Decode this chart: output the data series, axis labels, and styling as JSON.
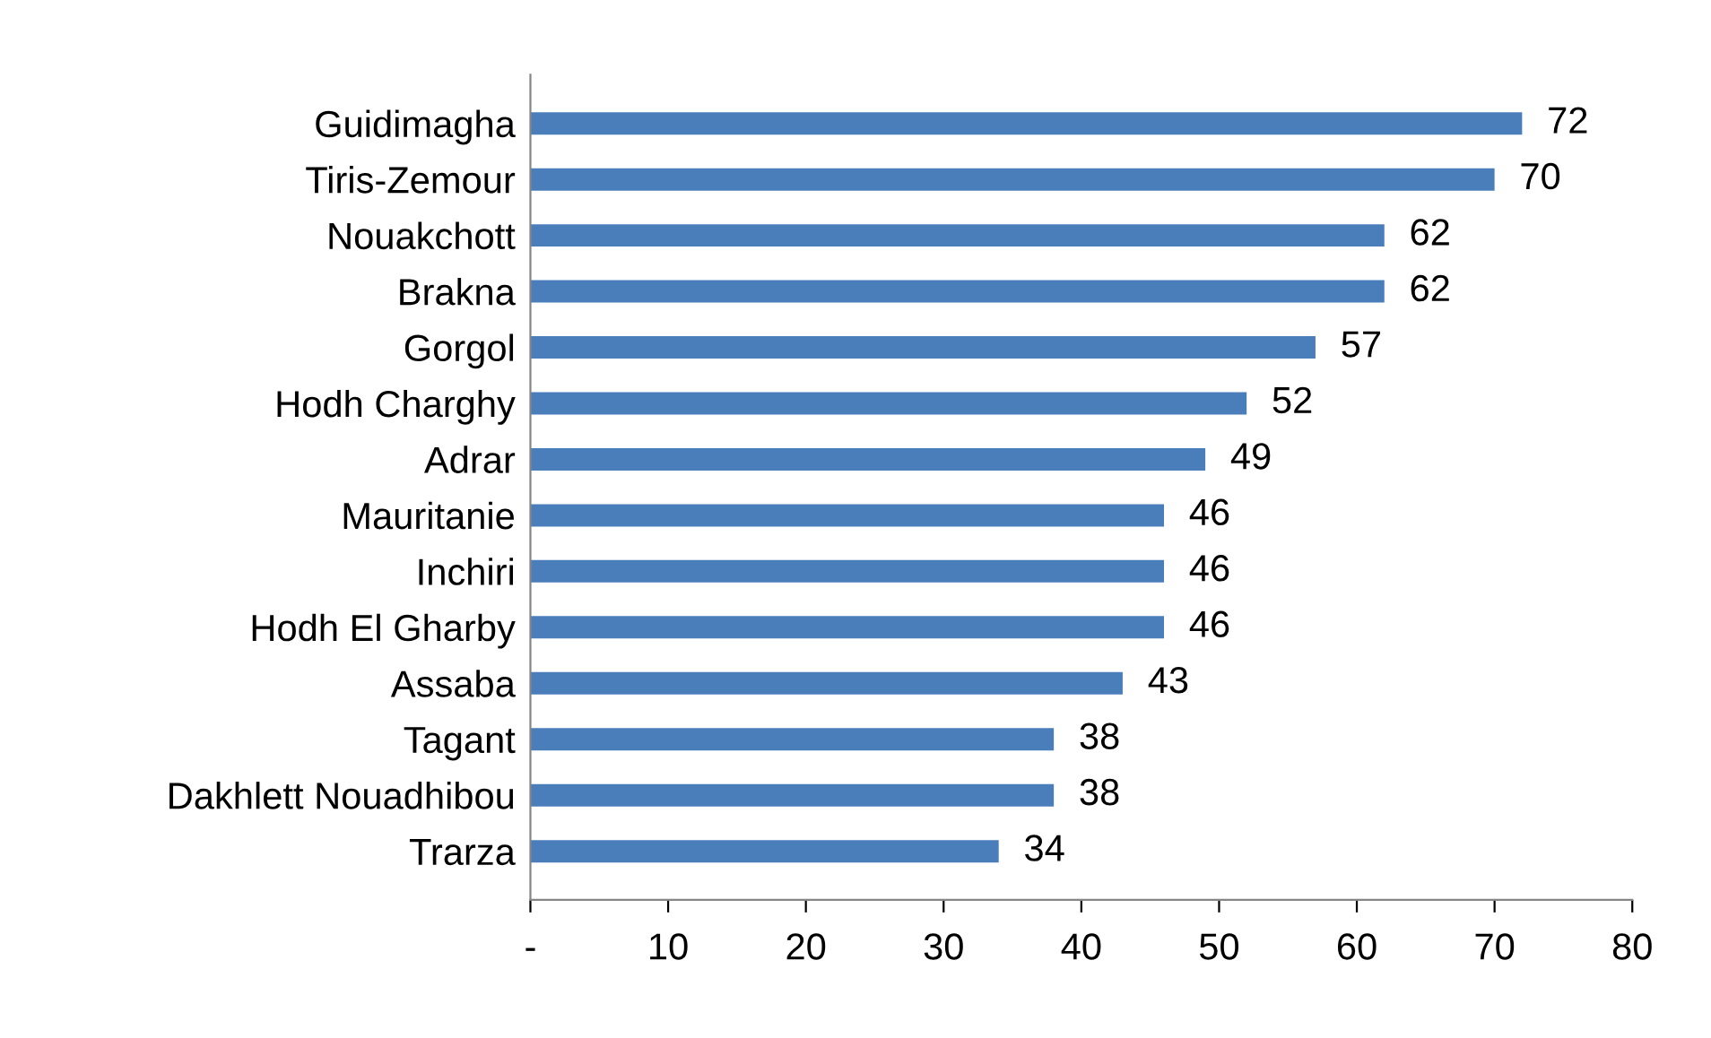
{
  "chart_data": {
    "type": "bar",
    "orientation": "horizontal",
    "categories": [
      "Guidimagha",
      "Tiris-Zemour",
      "Nouakchott",
      "Brakna",
      "Gorgol",
      "Hodh Charghy",
      "Adrar",
      "Mauritanie",
      "Inchiri",
      "Hodh El Gharby",
      "Assaba",
      "Tagant",
      "Dakhlett Nouadhibou",
      "Trarza"
    ],
    "values": [
      72,
      70,
      62,
      62,
      57,
      52,
      49,
      46,
      46,
      46,
      43,
      38,
      38,
      34
    ],
    "color": "#4a7ebb",
    "xlim": [
      0,
      80
    ],
    "xticks": [
      {
        "value": 0,
        "label": "-"
      },
      10,
      20,
      30,
      40,
      50,
      60,
      70,
      80
    ],
    "data_labels": true,
    "grid": false,
    "legend": false
  }
}
